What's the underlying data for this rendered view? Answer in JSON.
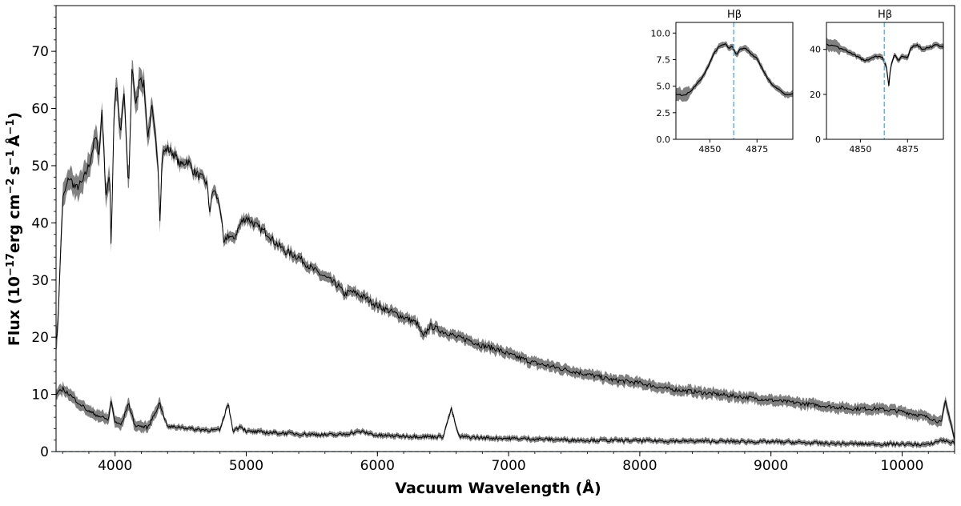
{
  "chart_data": [
    {
      "type": "line",
      "id": "main",
      "xlabel": "Vacuum Wavelength (Å)",
      "ylabel": "Flux (10",
      "ylabel_sup1": "−17",
      "ylabel_mid": "erg cm",
      "ylabel_sup2": "−2",
      "ylabel_s": "s",
      "ylabel_sup3": "−1",
      "ylabel_a": "Å",
      "ylabel_sup4": "−1",
      "ylabel_end": ")",
      "xlim": [
        3550,
        10400
      ],
      "ylim": [
        0,
        78
      ],
      "xticks": [
        4000,
        5000,
        6000,
        7000,
        8000,
        9000,
        10000
      ],
      "yticks": [
        0,
        10,
        20,
        30,
        40,
        50,
        60,
        70
      ],
      "grid": false,
      "line_color": "#000000",
      "band_color": "#6b6b6b",
      "zero_line_color": "#5a8fb0",
      "series": [
        {
          "x": [
            3560,
            3600,
            3650,
            3700,
            3750,
            3800,
            3850,
            3880,
            3900,
            3930,
            3960,
            3970,
            3990,
            4010,
            4040,
            4070,
            4102,
            4130,
            4160,
            4190,
            4220,
            4250,
            4280,
            4300,
            4330,
            4340,
            4360,
            4400,
            4450,
            4500,
            4550,
            4600,
            4650,
            4700,
            4720,
            4750,
            4800,
            4830,
            4861,
            4900,
            4960,
            5000,
            5050,
            5100,
            5175,
            5200,
            5250,
            5300,
            5400,
            5500,
            5600,
            5700,
            5750,
            5800,
            5900,
            6000,
            6100,
            6200,
            6300,
            6350,
            6400,
            6500,
            6563,
            6600,
            6700,
            6800,
            6900,
            7000,
            7200,
            7400,
            7600,
            7800,
            8000,
            8200,
            8400,
            8600,
            8800,
            9000,
            9200,
            9400,
            9600,
            9800,
            10000,
            10100,
            10200,
            10300,
            10330,
            10400
          ],
          "y": [
            20,
            44,
            48,
            46,
            47,
            50,
            55,
            52,
            60,
            45,
            48,
            35,
            58,
            65,
            55,
            63,
            45,
            68,
            60,
            66,
            64,
            55,
            60,
            56,
            50,
            40,
            52,
            53,
            52,
            50,
            51,
            49,
            48,
            47,
            42,
            46,
            43,
            36,
            38,
            37,
            40,
            41,
            40,
            39,
            38,
            37,
            36,
            35,
            34,
            32,
            30.5,
            29,
            27.5,
            28,
            27,
            25.5,
            24.5,
            23.5,
            22.5,
            20,
            22,
            21,
            20.5,
            20,
            19.5,
            18.5,
            18,
            17,
            15.5,
            14.5,
            13.5,
            12.5,
            12,
            11,
            10.5,
            10,
            9.5,
            9,
            8.5,
            8,
            7.5,
            7.5,
            7,
            6.5,
            6,
            5,
            9,
            2
          ]
        },
        {
          "x": [
            3560,
            3600,
            3650,
            3700,
            3750,
            3800,
            3850,
            3900,
            3950,
            3970,
            4000,
            4050,
            4102,
            4150,
            4250,
            4340,
            4400,
            4500,
            4600,
            4700,
            4800,
            4861,
            4900,
            4960,
            5000,
            5100,
            5200,
            5300,
            5500,
            5700,
            5876,
            6000,
            6200,
            6400,
            6500,
            6563,
            6620,
            6800,
            7000,
            7200,
            7500,
            8000,
            8500,
            9000,
            9200,
            9300,
            9500,
            9800,
            10000,
            10200,
            10300,
            10400
          ],
          "y": [
            10,
            11,
            10,
            9,
            8,
            7,
            6.5,
            6,
            5.5,
            9,
            5,
            4.8,
            8.5,
            4.6,
            4.2,
            8.5,
            4.3,
            4.3,
            3.9,
            3.8,
            3.7,
            8.5,
            3.6,
            4.5,
            3.5,
            3.4,
            3.3,
            3.2,
            3.0,
            2.9,
            3.5,
            2.8,
            2.7,
            2.6,
            2.6,
            7.5,
            2.6,
            2.4,
            2.3,
            2.2,
            2.0,
            1.9,
            1.8,
            1.7,
            1.6,
            1.5,
            1.4,
            1.3,
            1.3,
            1.2,
            2,
            1.5
          ]
        }
      ]
    },
    {
      "type": "line",
      "id": "inset-1",
      "title": "Hβ",
      "xlim": [
        4832,
        4894
      ],
      "ylim": [
        0,
        11
      ],
      "xticks": [
        4850,
        4875
      ],
      "yticks": [
        0.0,
        2.5,
        5.0,
        7.5,
        10.0
      ],
      "ytick_labels": [
        "0.0",
        "2.5",
        "5.0",
        "7.5",
        "10.0"
      ],
      "marker_x": 4862.7,
      "marker_color": "#6fb3dd",
      "x": [
        4832,
        4836,
        4840,
        4843,
        4846,
        4849,
        4852,
        4855,
        4858,
        4860,
        4862,
        4864,
        4866,
        4869,
        4872,
        4875,
        4878,
        4881,
        4884,
        4887,
        4890,
        4894
      ],
      "y": [
        4.3,
        4.1,
        4.5,
        5.2,
        5.8,
        6.8,
        8.0,
        8.8,
        9.0,
        8.6,
        8.8,
        7.9,
        8.5,
        8.6,
        8.0,
        7.6,
        6.6,
        5.6,
        5.0,
        4.6,
        4.2,
        4.3
      ]
    },
    {
      "type": "line",
      "id": "inset-2",
      "title": "Hβ",
      "xlim": [
        4832,
        4894
      ],
      "ylim": [
        0,
        52
      ],
      "xticks": [
        4850,
        4875
      ],
      "yticks": [
        0,
        20,
        40
      ],
      "ytick_labels": [
        "0",
        "20",
        "40"
      ],
      "marker_x": 4862.7,
      "marker_color": "#6fb3dd",
      "x": [
        4832,
        4836,
        4840,
        4844,
        4848,
        4852,
        4856,
        4859,
        4862,
        4864,
        4865,
        4866,
        4868,
        4870,
        4872,
        4875,
        4877,
        4880,
        4883,
        4887,
        4890,
        4894
      ],
      "y": [
        42,
        42,
        40,
        39,
        37,
        35,
        36,
        37,
        36,
        32,
        23,
        32,
        38,
        35,
        37,
        36,
        41,
        42,
        40,
        41,
        42,
        41
      ]
    }
  ]
}
